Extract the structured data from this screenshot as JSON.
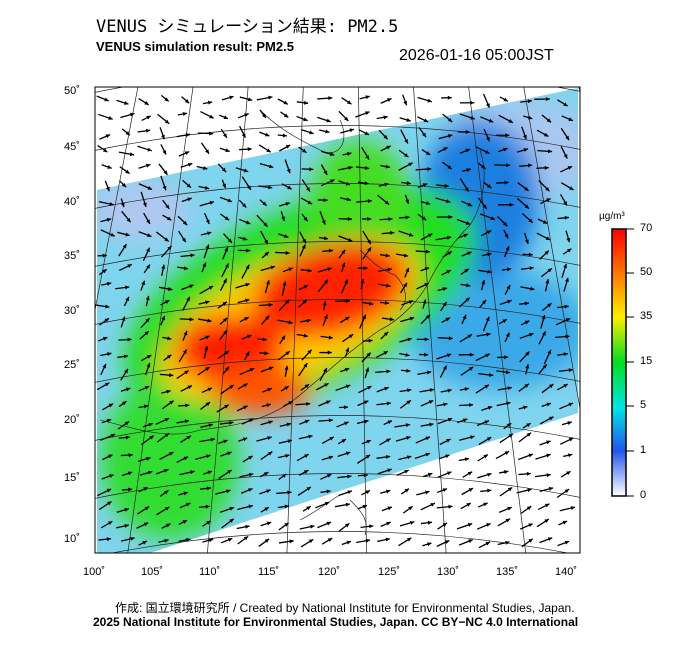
{
  "header": {
    "title_jp": "VENUS シミュレーション結果: PM2.5",
    "title_en": "VENUS simulation result: PM2.5",
    "timestamp": "2026-01-16 05:00JST"
  },
  "map": {
    "lat_labels": [
      "50˚",
      "45˚",
      "40˚",
      "35˚",
      "30˚",
      "25˚",
      "20˚",
      "15˚",
      "10˚"
    ],
    "lon_labels": [
      "100˚",
      "105˚",
      "110˚",
      "115˚",
      "120˚",
      "125˚",
      "130˚",
      "135˚",
      "140˚"
    ]
  },
  "colorbar": {
    "unit": "µg/m³",
    "ticks": [
      "70",
      "50",
      "35",
      "15",
      "5",
      "1",
      "0"
    ],
    "colors": [
      "#ff0000",
      "#ff8800",
      "#ffee00",
      "#00dd00",
      "#00e5e5",
      "#2255ee",
      "#ffffff"
    ]
  },
  "footer": {
    "credit": "作成: 国立環境研究所 / Created by National Institute for Environmental Studies, Japan.",
    "copyright": "2025 National Institute for Environmental Studies, Japan. CC BY−NC 4.0 International"
  }
}
